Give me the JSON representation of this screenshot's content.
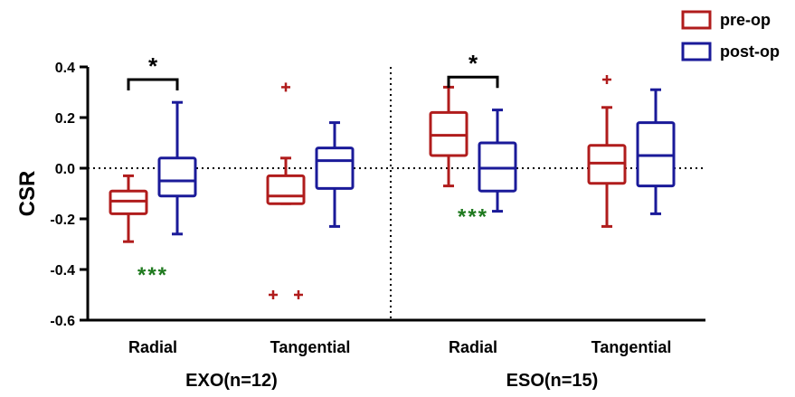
{
  "chart_data": {
    "type": "box",
    "ylabel": "CSR",
    "ylim": [
      -0.6,
      0.4
    ],
    "yticks": [
      "0.4",
      "0.2",
      "0.0",
      "-0.2",
      "-0.4",
      "-0.6"
    ],
    "reference_line": 0,
    "colors": {
      "pre-op": "#b01c1c",
      "post-op": "#1a1a99",
      "significance": "#1f7a1f"
    },
    "legend": {
      "position": "top-right",
      "entries": [
        "pre-op",
        "post-op"
      ]
    },
    "groups": [
      {
        "label": "EXO(n=12)",
        "categories": [
          "Radial",
          "Tangential"
        ]
      },
      {
        "label": "ESO(n=15)",
        "categories": [
          "Radial",
          "Tangential"
        ]
      }
    ],
    "boxes": [
      {
        "group": "EXO(n=12)",
        "category": "Radial",
        "series": "pre-op",
        "min": -0.29,
        "q1": -0.18,
        "median": -0.13,
        "q3": -0.09,
        "max": -0.03,
        "outliers": []
      },
      {
        "group": "EXO(n=12)",
        "category": "Radial",
        "series": "post-op",
        "min": -0.26,
        "q1": -0.11,
        "median": -0.05,
        "q3": 0.04,
        "max": 0.26,
        "outliers": []
      },
      {
        "group": "EXO(n=12)",
        "category": "Tangential",
        "series": "pre-op",
        "min": -0.14,
        "q1": -0.14,
        "median": -0.11,
        "q3": -0.03,
        "max": 0.04,
        "outliers": [
          0.32,
          -0.5,
          -0.5
        ]
      },
      {
        "group": "EXO(n=12)",
        "category": "Tangential",
        "series": "post-op",
        "min": -0.23,
        "q1": -0.08,
        "median": 0.03,
        "q3": 0.08,
        "max": 0.18,
        "outliers": []
      },
      {
        "group": "ESO(n=15)",
        "category": "Radial",
        "series": "pre-op",
        "min": -0.07,
        "q1": 0.05,
        "median": 0.13,
        "q3": 0.22,
        "max": 0.32,
        "outliers": []
      },
      {
        "group": "ESO(n=15)",
        "category": "Radial",
        "series": "post-op",
        "min": -0.17,
        "q1": -0.09,
        "median": 0.0,
        "q3": 0.1,
        "max": 0.23,
        "outliers": []
      },
      {
        "group": "ESO(n=15)",
        "category": "Tangential",
        "series": "pre-op",
        "min": -0.23,
        "q1": -0.06,
        "median": 0.02,
        "q3": 0.09,
        "max": 0.24,
        "outliers": [
          0.35
        ]
      },
      {
        "group": "ESO(n=15)",
        "category": "Tangential",
        "series": "post-op",
        "min": -0.18,
        "q1": -0.07,
        "median": 0.05,
        "q3": 0.18,
        "max": 0.31,
        "outliers": []
      }
    ],
    "brackets": [
      {
        "group": "EXO(n=12)",
        "category": "Radial",
        "label": "*",
        "y": 0.35
      },
      {
        "group": "ESO(n=15)",
        "category": "Radial",
        "label": "*",
        "y": 0.36
      }
    ],
    "star_annotations": [
      {
        "group": "EXO(n=12)",
        "category": "Radial",
        "text": "***",
        "y": -0.4
      },
      {
        "group": "ESO(n=15)",
        "category": "Radial",
        "text": "***",
        "y": -0.17
      }
    ]
  }
}
